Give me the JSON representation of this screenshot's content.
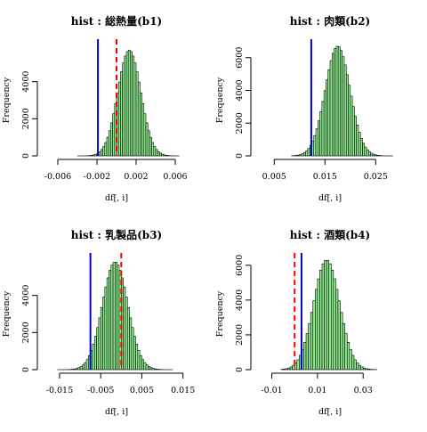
{
  "chart_data": [
    {
      "type": "bar",
      "title": "hist : 総熱量(b1)",
      "xlabel": "df[, i]",
      "ylabel": "Frequency",
      "xlim": [
        -0.007,
        0.007
      ],
      "ylim": [
        0,
        6000
      ],
      "x_ticks": [
        -0.006,
        -0.002,
        0.002,
        0.006
      ],
      "x_tick_labels": [
        "-0.006",
        "-0.002",
        "0.002",
        "0.006"
      ],
      "y_ticks": [
        0,
        2000,
        4000
      ],
      "y_tick_labels": [
        "0",
        "2000",
        "4000"
      ],
      "bin_width": 0.0002,
      "bins_from": -0.004,
      "bins_to": 0.0064,
      "bar_color": "#90ee90",
      "distribution": {
        "mean": 0.0013,
        "sd": 0.00118,
        "peak": 5700
      },
      "vline_solid": {
        "x": -0.0019,
        "color": "#0000cd"
      },
      "vline_dashed": {
        "x": 0.0,
        "color": "#ff0000"
      }
    },
    {
      "type": "bar",
      "title": "hist : 肉類(b2)",
      "xlabel": "df[, i]",
      "ylabel": "Frequency",
      "xlim": [
        0.0025,
        0.0295
      ],
      "ylim": [
        0,
        6800
      ],
      "x_ticks": [
        0.005,
        0.015,
        0.025
      ],
      "x_tick_labels": [
        "0.005",
        "0.015",
        "0.025"
      ],
      "y_ticks": [
        0,
        2000,
        4000,
        6000
      ],
      "y_tick_labels": [
        "0",
        "2000",
        "4000",
        "6000"
      ],
      "bin_width": 0.0004,
      "bins_from": 0.0084,
      "bins_to": 0.0284,
      "bar_color": "#90ee90",
      "distribution": {
        "mean": 0.0175,
        "sd": 0.00245,
        "peak": 6700
      },
      "vline_solid": {
        "x": 0.0123,
        "color": "#0000cd"
      }
    },
    {
      "type": "bar",
      "title": "hist : 乳製品(b3)",
      "xlabel": "df[, i]",
      "ylabel": "Frequency",
      "xlim": [
        -0.0178,
        0.0155
      ],
      "ylim": [
        0,
        6000
      ],
      "x_ticks": [
        -0.015,
        -0.005,
        0.005,
        0.015
      ],
      "x_tick_labels": [
        "-0.015",
        "-0.005",
        "0.005",
        "0.015"
      ],
      "y_ticks": [
        0,
        2000,
        4000
      ],
      "y_tick_labels": [
        "0",
        "2000",
        "4000"
      ],
      "bin_width": 0.0005,
      "bins_from": -0.0175,
      "bins_to": 0.0125,
      "bar_color": "#90ee90",
      "distribution": {
        "mean": -0.0015,
        "sd": 0.0031,
        "peak": 5800
      },
      "vline_solid": {
        "x": -0.0075,
        "color": "#0000cd"
      },
      "vline_dashed": {
        "x": 0.0,
        "color": "#ff0000"
      }
    },
    {
      "type": "bar",
      "title": "hist : 酒類(b4)",
      "xlabel": "df[, i]",
      "ylabel": "Frequency",
      "xlim": [
        -0.0145,
        0.0455
      ],
      "ylim": [
        0,
        6400
      ],
      "x_ticks": [
        -0.01,
        0.01,
        0.03
      ],
      "x_tick_labels": [
        "-0.01",
        "0.01",
        "0.03"
      ],
      "y_ticks": [
        0,
        2000,
        4000,
        6000
      ],
      "y_tick_labels": [
        "0",
        "2000",
        "4000",
        "6000"
      ],
      "bin_width": 0.001,
      "bins_from": -0.006,
      "bins_to": 0.036,
      "bar_color": "#90ee90",
      "distribution": {
        "mean": 0.014,
        "sd": 0.0057,
        "peak": 6300
      },
      "vline_solid": {
        "x": 0.003,
        "color": "#0000cd"
      },
      "vline_dashed": {
        "x": 0.0,
        "color": "#ff0000"
      }
    }
  ]
}
